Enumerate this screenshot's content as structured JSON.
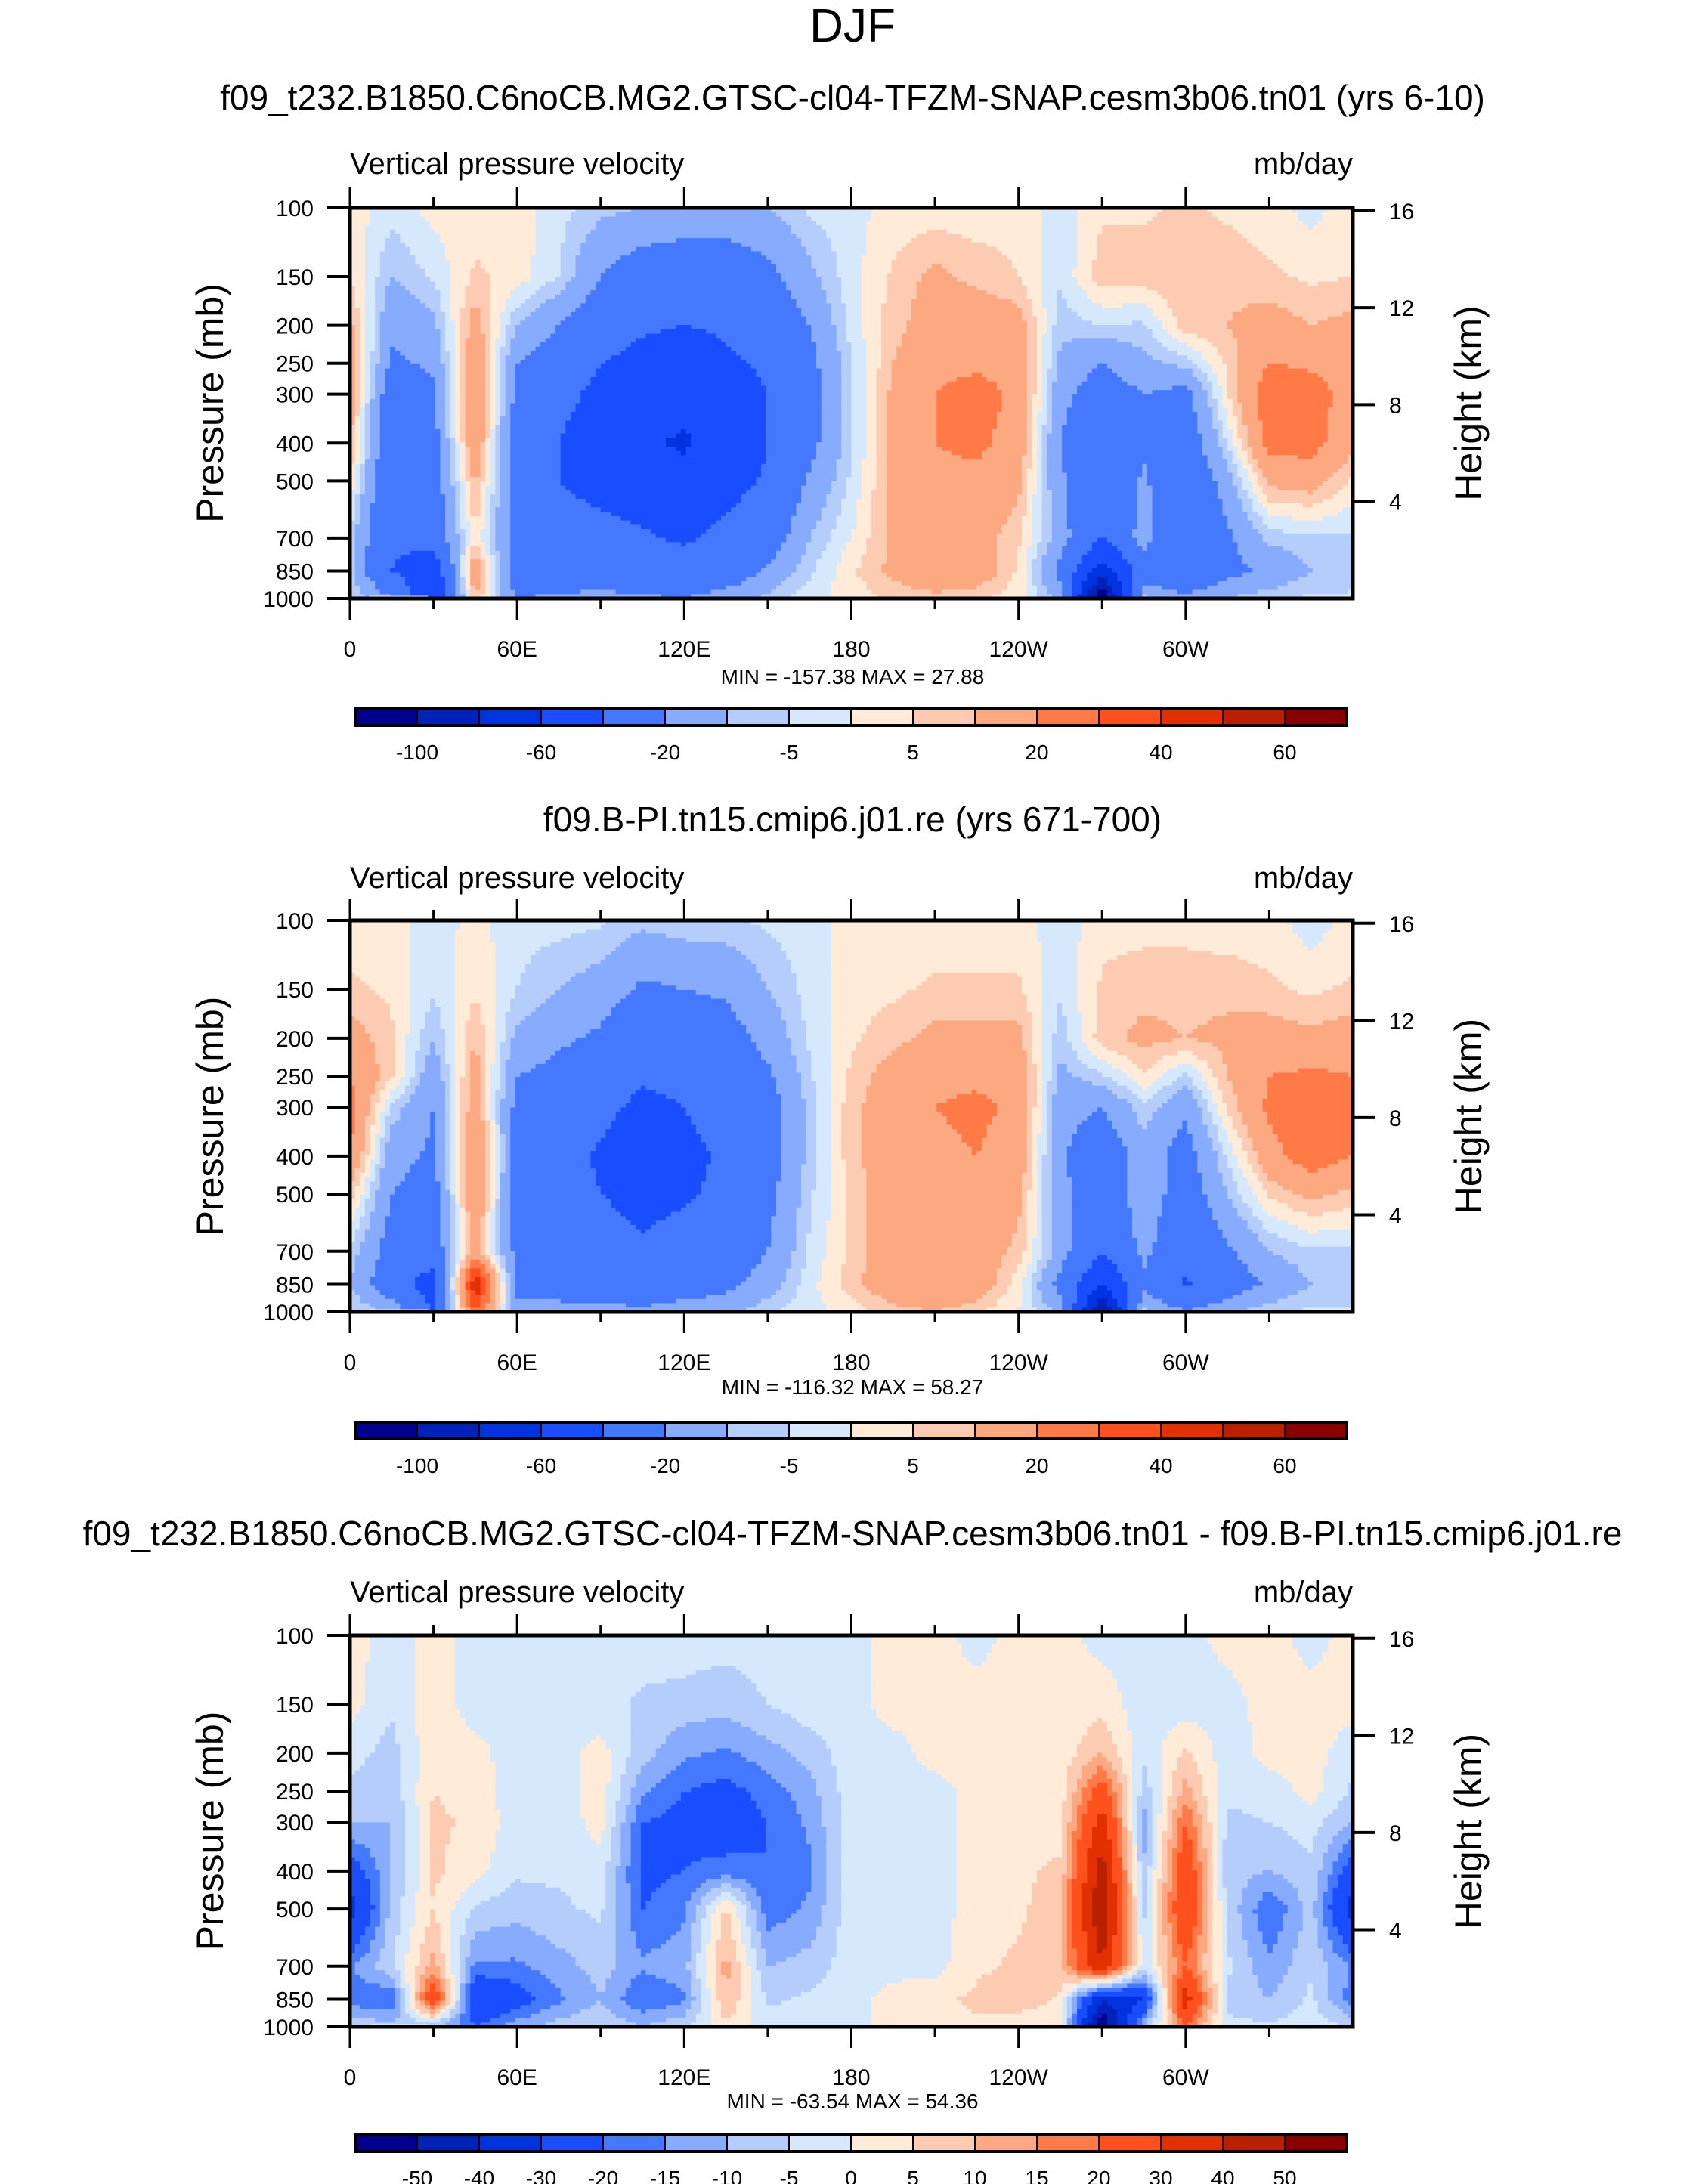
{
  "figure": {
    "title": "DJF"
  },
  "chart_data": [
    {
      "type": "heatmap",
      "panel": "model",
      "title": "f09_t232.B1850.C6noCB.MG2.GTSC-cl04-TFZM-SNAP.cesm3b06.tn01 (yrs 6-10)",
      "left_label": "Vertical pressure velocity",
      "right_label": "mb/day",
      "xlabel": "",
      "ylabel": "Pressure (mb)",
      "ylabel_right": "Height (km)",
      "xlim": [
        0,
        360
      ],
      "ylim": [
        1000,
        100
      ],
      "yscale": "log",
      "xticks": [
        0,
        60,
        120,
        180,
        240,
        300
      ],
      "xtick_labels": [
        "0",
        "60E",
        "120E",
        "180",
        "120W",
        "60W"
      ],
      "yticks": [
        100,
        150,
        200,
        250,
        300,
        400,
        500,
        700,
        850,
        1000
      ],
      "ytick_labels": [
        "100",
        "150",
        "200",
        "250",
        "300",
        "400",
        "500",
        "700",
        "850",
        "1000"
      ],
      "ytick_right": [
        16,
        12,
        8,
        4
      ],
      "minmax_text": "MIN = -157.38  MAX =  27.88",
      "levels": [
        -100,
        -80,
        -60,
        -40,
        -20,
        -10,
        -5,
        0,
        5,
        10,
        20,
        30,
        40,
        50,
        60
      ],
      "level_labels": [
        "-100",
        "-60",
        "-20",
        "-5",
        "5",
        "20",
        "40",
        "60"
      ],
      "level_label_every": 2,
      "lon": [
        0,
        15,
        30,
        45,
        60,
        75,
        90,
        105,
        120,
        135,
        150,
        165,
        180,
        195,
        210,
        225,
        240,
        255,
        270,
        285,
        300,
        315,
        330,
        345,
        360
      ],
      "lev": [
        100,
        150,
        200,
        250,
        300,
        400,
        500,
        700,
        850,
        1000
      ],
      "values": [
        [
          3,
          -3,
          2,
          2,
          2,
          -3,
          -8,
          -10,
          -12,
          -12,
          -10,
          -4,
          -2,
          2,
          2,
          2,
          3,
          -3,
          4,
          4,
          6,
          4,
          2,
          -2,
          3
        ],
        [
          5,
          -10,
          -4,
          6,
          3,
          -5,
          -20,
          -28,
          -30,
          -30,
          -24,
          -12,
          -2,
          6,
          12,
          8,
          5,
          -4,
          8,
          8,
          9,
          8,
          6,
          4,
          5
        ],
        [
          12,
          -18,
          -12,
          14,
          -10,
          -20,
          -30,
          -38,
          -40,
          -38,
          -30,
          -20,
          -3,
          8,
          14,
          16,
          14,
          -8,
          -5,
          -6,
          8,
          10,
          14,
          10,
          12
        ],
        [
          14,
          -22,
          -18,
          18,
          -20,
          -28,
          -40,
          -45,
          -48,
          -42,
          -38,
          -24,
          -5,
          10,
          18,
          18,
          16,
          -12,
          -20,
          -12,
          -8,
          6,
          20,
          18,
          14
        ],
        [
          14,
          -30,
          -22,
          20,
          -24,
          -34,
          -45,
          -50,
          -56,
          -48,
          -40,
          -26,
          -6,
          12,
          20,
          24,
          18,
          -16,
          -28,
          -20,
          -24,
          4,
          28,
          26,
          14
        ],
        [
          12,
          -34,
          -25,
          18,
          -26,
          -40,
          -52,
          -58,
          -62,
          -52,
          -40,
          -24,
          -6,
          12,
          20,
          22,
          16,
          -20,
          -34,
          -22,
          -30,
          -4,
          24,
          24,
          12
        ],
        [
          4,
          -36,
          -28,
          12,
          -26,
          -40,
          -46,
          -50,
          -55,
          -46,
          -38,
          -18,
          -4,
          12,
          18,
          18,
          12,
          -18,
          -34,
          -18,
          -34,
          -14,
          12,
          14,
          4
        ],
        [
          -6,
          -38,
          -30,
          4,
          -25,
          -32,
          -34,
          -38,
          -42,
          -36,
          -28,
          -10,
          0,
          12,
          16,
          14,
          6,
          -14,
          -40,
          -14,
          -38,
          -22,
          -8,
          -6,
          -6
        ],
        [
          -8,
          -40,
          -55,
          18,
          -30,
          -30,
          -30,
          -32,
          -34,
          -30,
          -18,
          -6,
          4,
          12,
          18,
          16,
          4,
          -24,
          -70,
          -30,
          -40,
          -24,
          -18,
          -10,
          -8
        ],
        [
          -4,
          -20,
          -60,
          10,
          -20,
          -18,
          -16,
          -18,
          -20,
          -14,
          -8,
          -2,
          2,
          6,
          8,
          6,
          2,
          -12,
          -120,
          -8,
          -16,
          -10,
          -6,
          -4,
          -4
        ]
      ]
    },
    {
      "type": "heatmap",
      "panel": "control",
      "title": "f09.B-PI.tn15.cmip6.j01.re (yrs 671-700)",
      "left_label": "Vertical pressure velocity",
      "right_label": "mb/day",
      "xlabel": "",
      "ylabel": "Pressure (mb)",
      "ylabel_right": "Height (km)",
      "xlim": [
        0,
        360
      ],
      "ylim": [
        1000,
        100
      ],
      "yscale": "log",
      "xticks": [
        0,
        60,
        120,
        180,
        240,
        300
      ],
      "xtick_labels": [
        "0",
        "60E",
        "120E",
        "180",
        "120W",
        "60W"
      ],
      "yticks": [
        100,
        150,
        200,
        250,
        300,
        400,
        500,
        700,
        850,
        1000
      ],
      "ytick_labels": [
        "100",
        "150",
        "200",
        "250",
        "300",
        "400",
        "500",
        "700",
        "850",
        "1000"
      ],
      "ytick_right": [
        16,
        12,
        8,
        4
      ],
      "minmax_text": "MIN = -116.32  MAX =  58.27",
      "levels": [
        -100,
        -80,
        -60,
        -40,
        -20,
        -10,
        -5,
        0,
        5,
        10,
        20,
        30,
        40,
        50,
        60
      ],
      "level_labels": [
        "-100",
        "-60",
        "-20",
        "-5",
        "5",
        "20",
        "40",
        "60"
      ],
      "level_label_every": 2,
      "lon": [
        0,
        15,
        30,
        45,
        60,
        75,
        90,
        105,
        120,
        135,
        150,
        165,
        180,
        195,
        210,
        225,
        240,
        255,
        270,
        285,
        300,
        315,
        330,
        345,
        360
      ],
      "lev": [
        100,
        150,
        200,
        250,
        300,
        400,
        500,
        700,
        850,
        1000
      ],
      "values": [
        [
          2,
          2,
          -3,
          2,
          -3,
          -3,
          -4,
          -8,
          -6,
          -6,
          -4,
          -2,
          2,
          2,
          2,
          2,
          2,
          -3,
          3,
          3,
          3,
          2,
          2,
          -3,
          2
        ],
        [
          6,
          4,
          -4,
          4,
          -5,
          -10,
          -14,
          -22,
          -20,
          -18,
          -10,
          -3,
          3,
          4,
          6,
          6,
          6,
          -4,
          6,
          8,
          8,
          8,
          6,
          4,
          6
        ],
        [
          14,
          6,
          -10,
          10,
          -12,
          -18,
          -22,
          -34,
          -30,
          -26,
          -16,
          -4,
          4,
          8,
          12,
          12,
          12,
          -8,
          8,
          12,
          10,
          12,
          14,
          12,
          14
        ],
        [
          20,
          6,
          -16,
          14,
          -20,
          -24,
          -28,
          -38,
          -36,
          -30,
          -22,
          -6,
          6,
          14,
          18,
          18,
          16,
          -12,
          -6,
          4,
          -6,
          10,
          20,
          22,
          20
        ],
        [
          24,
          -6,
          -20,
          16,
          -24,
          -28,
          -36,
          -44,
          -40,
          -34,
          -26,
          -8,
          8,
          16,
          20,
          22,
          18,
          -16,
          -20,
          -6,
          -18,
          6,
          22,
          28,
          24
        ],
        [
          20,
          -16,
          -22,
          22,
          -26,
          -34,
          -42,
          -48,
          -44,
          -38,
          -26,
          -8,
          8,
          16,
          18,
          20,
          16,
          -18,
          -30,
          -14,
          -26,
          -4,
          16,
          26,
          20
        ],
        [
          8,
          -20,
          -26,
          20,
          -26,
          -34,
          -40,
          -44,
          -42,
          -36,
          -24,
          -6,
          6,
          16,
          18,
          18,
          12,
          -16,
          -32,
          -12,
          -28,
          -10,
          6,
          12,
          8
        ],
        [
          -6,
          -26,
          -30,
          14,
          -24,
          -30,
          -34,
          -38,
          -34,
          -30,
          -20,
          -4,
          6,
          16,
          18,
          16,
          8,
          -14,
          -40,
          -16,
          -34,
          -22,
          -10,
          -6,
          -6
        ],
        [
          -10,
          -30,
          -50,
          50,
          -24,
          -26,
          -28,
          -30,
          -28,
          -24,
          -14,
          -2,
          8,
          16,
          20,
          16,
          2,
          -24,
          -60,
          -24,
          -42,
          -28,
          -18,
          -10,
          -10
        ],
        [
          -4,
          -12,
          -40,
          30,
          -16,
          -16,
          -16,
          -18,
          -14,
          -12,
          -6,
          -2,
          2,
          8,
          10,
          6,
          0,
          -12,
          -100,
          -8,
          -20,
          -12,
          -6,
          -4,
          -4
        ]
      ]
    },
    {
      "type": "heatmap",
      "panel": "difference",
      "title": "f09_t232.B1850.C6noCB.MG2.GTSC-cl04-TFZM-SNAP.cesm3b06.tn01 - f09.B-PI.tn15.cmip6.j01.re",
      "left_label": "Vertical pressure velocity",
      "right_label": "mb/day",
      "xlabel": "",
      "ylabel": "Pressure (mb)",
      "ylabel_right": "Height (km)",
      "xlim": [
        0,
        360
      ],
      "ylim": [
        1000,
        100
      ],
      "yscale": "log",
      "xticks": [
        0,
        60,
        120,
        180,
        240,
        300
      ],
      "xtick_labels": [
        "0",
        "60E",
        "120E",
        "180",
        "120W",
        "60W"
      ],
      "yticks": [
        100,
        150,
        200,
        250,
        300,
        400,
        500,
        700,
        850,
        1000
      ],
      "ytick_labels": [
        "100",
        "150",
        "200",
        "250",
        "300",
        "400",
        "500",
        "700",
        "850",
        "1000"
      ],
      "ytick_right": [
        16,
        12,
        8,
        4
      ],
      "minmax_text": "MIN = -63.54  MAX =  54.36",
      "levels": [
        -50,
        -40,
        -30,
        -20,
        -15,
        -10,
        -5,
        0,
        5,
        10,
        15,
        20,
        30,
        40,
        50
      ],
      "level_labels": [
        "-50",
        "-40",
        "-30",
        "-20",
        "-15",
        "-10",
        "-5",
        "0",
        "5",
        "10",
        "15",
        "20",
        "30",
        "40",
        "50"
      ],
      "level_label_every": 1,
      "lon": [
        0,
        15,
        30,
        45,
        60,
        75,
        90,
        105,
        120,
        135,
        150,
        165,
        180,
        195,
        210,
        225,
        240,
        255,
        270,
        285,
        300,
        315,
        330,
        345,
        360
      ],
      "lev": [
        100,
        150,
        200,
        250,
        300,
        400,
        500,
        700,
        850,
        1000
      ],
      "values": [
        [
          2,
          -2,
          2,
          -2,
          -2,
          -2,
          -2,
          -2,
          -2,
          -3,
          -2,
          -2,
          -2,
          2,
          2,
          -2,
          2,
          2,
          -2,
          -2,
          -2,
          2,
          2,
          -2,
          2
        ],
        [
          2,
          -4,
          3,
          -3,
          -3,
          -2,
          -3,
          -6,
          -7,
          -8,
          -5,
          -2,
          -2,
          2,
          2,
          2,
          3,
          2,
          3,
          -3,
          -3,
          -2,
          2,
          2,
          2
        ],
        [
          -3,
          -7,
          4,
          2,
          -3,
          -2,
          2,
          -8,
          -14,
          -16,
          -12,
          -8,
          -2,
          -2,
          2,
          2,
          3,
          2,
          10,
          -4,
          6,
          -3,
          2,
          2,
          -3
        ],
        [
          -6,
          -8,
          5,
          3,
          -3,
          -3,
          3,
          -14,
          -20,
          -22,
          -18,
          -12,
          -2,
          -2,
          -2,
          2,
          3,
          2,
          25,
          -8,
          12,
          -4,
          -3,
          2,
          -6
        ],
        [
          -10,
          -10,
          6,
          4,
          -3,
          -3,
          2,
          -20,
          -22,
          -24,
          -20,
          -14,
          -2,
          -2,
          -2,
          2,
          4,
          3,
          35,
          -12,
          20,
          -6,
          -5,
          -3,
          -10
        ],
        [
          -25,
          -10,
          6,
          2,
          -4,
          -4,
          -2,
          -22,
          -20,
          -18,
          -20,
          -16,
          -2,
          -2,
          -2,
          2,
          4,
          6,
          45,
          -10,
          28,
          -8,
          -10,
          -6,
          -25
        ],
        [
          -35,
          -8,
          5,
          -6,
          -8,
          -6,
          -4,
          -20,
          -16,
          6,
          -18,
          -14,
          -2,
          -2,
          -2,
          2,
          4,
          8,
          50,
          -6,
          30,
          -6,
          -20,
          -8,
          -35
        ],
        [
          -16,
          -6,
          12,
          -16,
          -16,
          -12,
          -8,
          -14,
          -12,
          12,
          -10,
          -8,
          -2,
          -2,
          -2,
          4,
          6,
          8,
          40,
          -4,
          20,
          -4,
          -14,
          -6,
          -16
        ],
        [
          -18,
          -20,
          30,
          -30,
          -24,
          -16,
          -10,
          -20,
          -16,
          10,
          -6,
          -4,
          -2,
          2,
          4,
          6,
          8,
          4,
          -40,
          -30,
          36,
          -6,
          -10,
          -4,
          -18
        ],
        [
          -6,
          -8,
          -10,
          -20,
          -12,
          -8,
          -6,
          -10,
          -6,
          4,
          -2,
          -2,
          -2,
          2,
          3,
          4,
          2,
          2,
          -60,
          -10,
          20,
          -4,
          -4,
          -2,
          -6
        ]
      ]
    }
  ],
  "colormap": [
    "#00008f",
    "#0022b8",
    "#0033e0",
    "#1a4dff",
    "#4478ff",
    "#86abff",
    "#b4cdfb",
    "#d6e8fc",
    "#ffebd8",
    "#fccbb2",
    "#fca982",
    "#ff7a46",
    "#ff501e",
    "#e33000",
    "#b82000",
    "#8a0000"
  ],
  "missing_color": "#ffffff"
}
